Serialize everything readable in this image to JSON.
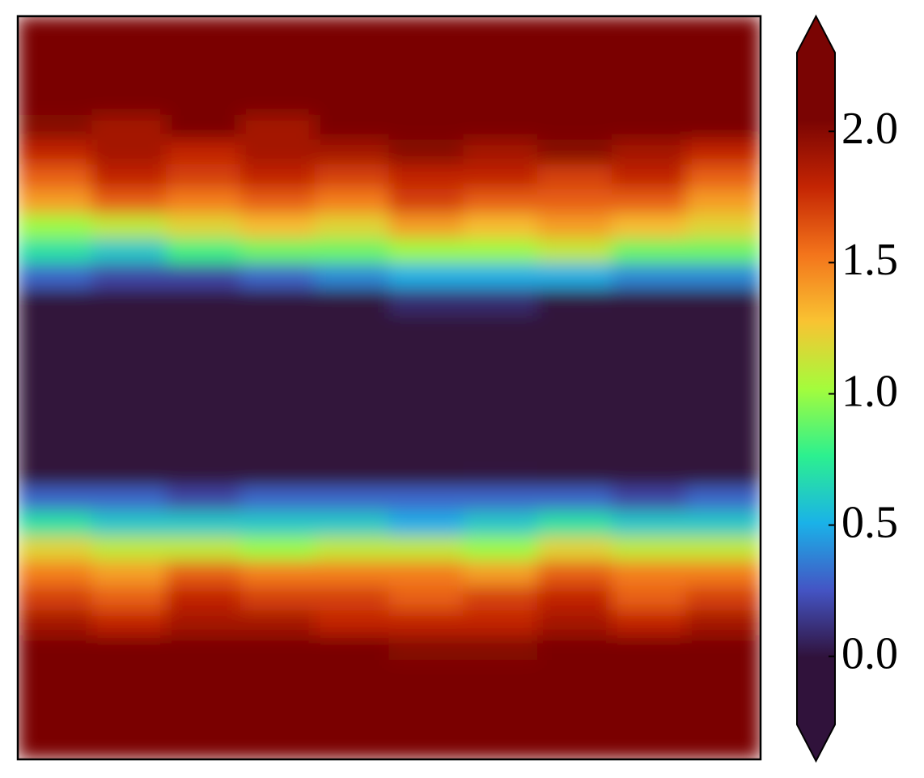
{
  "chart_data": {
    "type": "heatmap",
    "z": [
      [
        2.3,
        2.3,
        2.3,
        2.3,
        2.3,
        2.3,
        2.3,
        2.3,
        2.3,
        2.3
      ],
      [
        2.3,
        2.3,
        2.3,
        2.3,
        2.3,
        2.3,
        2.3,
        2.3,
        2.3,
        2.3
      ],
      [
        2.3,
        2.3,
        2.3,
        2.3,
        2.3,
        2.3,
        2.3,
        2.3,
        2.3,
        2.3
      ],
      [
        2.3,
        2.3,
        2.3,
        2.3,
        2.3,
        2.3,
        2.3,
        2.3,
        2.3,
        2.3
      ],
      [
        2.0,
        1.9,
        2.1,
        1.9,
        2.2,
        2.1,
        2.2,
        2.1,
        2.2,
        2.2
      ],
      [
        1.8,
        1.9,
        1.8,
        1.9,
        1.9,
        2.0,
        1.9,
        2.0,
        1.9,
        1.8
      ],
      [
        1.6,
        1.8,
        1.7,
        1.8,
        1.7,
        1.8,
        1.8,
        1.7,
        1.8,
        1.6
      ],
      [
        1.4,
        1.6,
        1.5,
        1.6,
        1.5,
        1.7,
        1.6,
        1.6,
        1.6,
        1.4
      ],
      [
        1.0,
        1.1,
        1.2,
        1.3,
        1.2,
        1.4,
        1.3,
        1.4,
        1.3,
        1.2
      ],
      [
        0.7,
        0.6,
        0.8,
        0.9,
        0.9,
        1.0,
        1.0,
        1.1,
        0.9,
        0.9
      ],
      [
        0.3,
        0.2,
        0.2,
        0.3,
        0.4,
        0.5,
        0.5,
        0.5,
        0.4,
        0.4
      ],
      [
        -0.2,
        -0.2,
        -0.2,
        -0.2,
        -0.1,
        0.1,
        0.1,
        0.0,
        -0.2,
        -0.2
      ],
      [
        -0.2,
        -0.2,
        -0.2,
        -0.2,
        -0.2,
        -0.2,
        -0.2,
        -0.2,
        -0.2,
        -0.2
      ],
      [
        -0.2,
        -0.2,
        -0.2,
        -0.2,
        -0.2,
        -0.2,
        -0.2,
        -0.2,
        -0.2,
        -0.2
      ],
      [
        -0.2,
        -0.2,
        -0.2,
        -0.2,
        -0.2,
        -0.2,
        -0.2,
        -0.2,
        -0.2,
        -0.2
      ],
      [
        -0.2,
        -0.2,
        -0.2,
        -0.2,
        -0.2,
        -0.2,
        -0.2,
        -0.2,
        -0.2,
        -0.2
      ],
      [
        -0.2,
        -0.2,
        -0.2,
        -0.2,
        -0.2,
        -0.2,
        -0.2,
        -0.2,
        -0.2,
        -0.2
      ],
      [
        -0.2,
        -0.2,
        -0.2,
        -0.2,
        -0.2,
        -0.2,
        -0.2,
        -0.2,
        -0.2,
        -0.2
      ],
      [
        -0.2,
        -0.2,
        -0.2,
        -0.2,
        -0.2,
        -0.1,
        0.0,
        -0.2,
        -0.2,
        -0.2
      ],
      [
        0.3,
        0.3,
        0.2,
        0.3,
        0.3,
        0.3,
        0.3,
        0.3,
        0.2,
        0.3
      ],
      [
        0.7,
        0.6,
        0.6,
        0.6,
        0.6,
        0.5,
        0.6,
        0.7,
        0.6,
        0.6
      ],
      [
        1.2,
        1.1,
        1.1,
        1.0,
        1.1,
        1.1,
        1.0,
        1.2,
        1.1,
        1.1
      ],
      [
        1.5,
        1.4,
        1.6,
        1.5,
        1.5,
        1.5,
        1.4,
        1.6,
        1.5,
        1.5
      ],
      [
        1.7,
        1.6,
        1.8,
        1.7,
        1.7,
        1.6,
        1.7,
        1.8,
        1.6,
        1.7
      ],
      [
        1.9,
        1.8,
        1.9,
        1.9,
        1.8,
        1.8,
        1.8,
        1.9,
        1.8,
        1.9
      ],
      [
        2.2,
        2.1,
        2.1,
        2.2,
        2.1,
        2.0,
        2.0,
        2.2,
        2.1,
        2.1
      ],
      [
        2.3,
        2.3,
        2.3,
        2.3,
        2.3,
        2.3,
        2.3,
        2.3,
        2.3,
        2.3
      ],
      [
        2.3,
        2.3,
        2.3,
        2.3,
        2.3,
        2.3,
        2.3,
        2.3,
        2.3,
        2.3
      ],
      [
        2.3,
        2.3,
        2.3,
        2.3,
        2.3,
        2.3,
        2.3,
        2.3,
        2.3,
        2.3
      ],
      [
        2.3,
        2.3,
        2.3,
        2.3,
        2.3,
        2.3,
        2.3,
        2.3,
        2.3,
        2.3
      ]
    ],
    "colormap": [
      "#30123b",
      "#30123b",
      "#4454c4",
      "#1ab2e8",
      "#2cf08f",
      "#a4fc3c",
      "#f9c332",
      "#f3741b",
      "#c42503",
      "#7a0403",
      "#7a0403"
    ],
    "colorbar": {
      "lim": [
        -0.26,
        2.3
      ],
      "ticks": [
        {
          "value": 0,
          "label": "0.0"
        },
        {
          "value": 0.5,
          "label": "0.5"
        },
        {
          "value": 1,
          "label": "1.0"
        },
        {
          "value": 1.5,
          "label": "1.5"
        },
        {
          "value": 2,
          "label": "2.0"
        }
      ],
      "extend": "both"
    }
  }
}
